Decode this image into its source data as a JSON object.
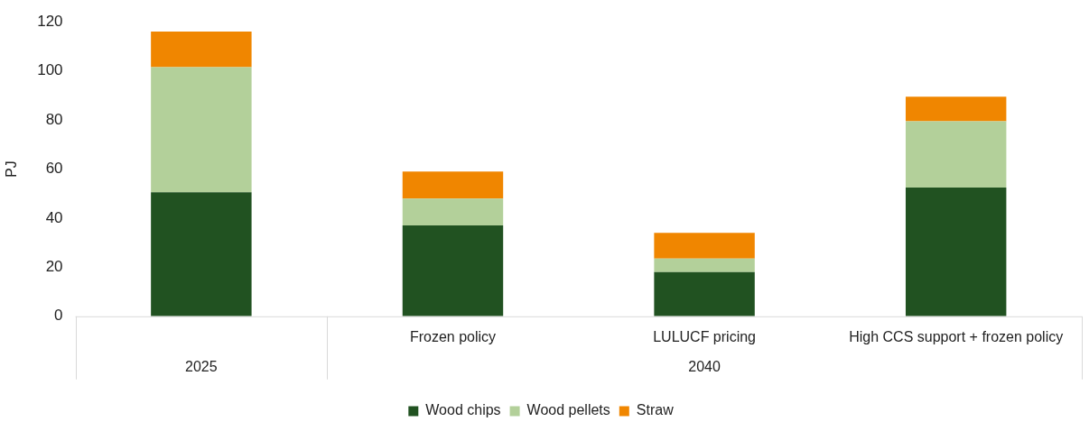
{
  "chart_data": {
    "type": "bar",
    "stacked": true,
    "ylabel": "PJ",
    "categories": [
      null,
      "Frozen policy",
      "LULUCF pricing",
      "High CCS support + frozen policy"
    ],
    "series": [
      {
        "name": "Wood chips",
        "color": "#215221",
        "values": [
          50.5,
          37,
          18,
          52.5
        ]
      },
      {
        "name": "Wood pellets",
        "color": "#b3d09a",
        "values": [
          51,
          11,
          5.5,
          27
        ]
      },
      {
        "name": "Straw",
        "color": "#f08600",
        "values": [
          14.5,
          11,
          10.5,
          10
        ]
      }
    ],
    "ylim": [
      0,
      120
    ],
    "yticks": [
      0,
      20,
      40,
      60,
      80,
      100,
      120
    ],
    "grid": false,
    "legend": "bottom",
    "annotations": [
      "2025",
      "2040"
    ]
  }
}
